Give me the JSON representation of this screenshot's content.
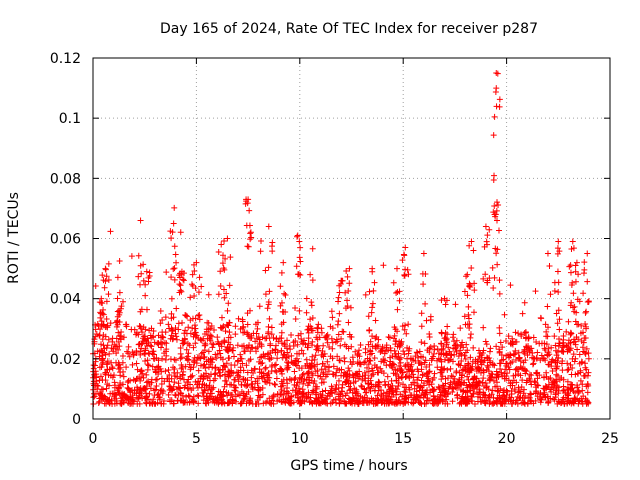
{
  "chart_data": {
    "type": "scatter",
    "title": "Day 165 of 2024, Rate Of TEC Index for receiver p287",
    "xlabel": "GPS time / hours",
    "ylabel": "ROTI / TECUs",
    "xlim": [
      0,
      25
    ],
    "ylim": [
      0,
      0.12
    ],
    "xticks": [
      0,
      5,
      10,
      15,
      20,
      25
    ],
    "xtick_labels": [
      "0",
      "5",
      "10",
      "15",
      "20",
      "25"
    ],
    "yticks": [
      0,
      0.02,
      0.04,
      0.06,
      0.08,
      0.1,
      0.12
    ],
    "ytick_labels": [
      "0",
      "0.02",
      "0.04",
      "0.06",
      "0.08",
      "0.1",
      "0.12"
    ],
    "grid": true,
    "marker": "+",
    "color": "#ff0000",
    "x_range_hours": [
      0,
      24
    ],
    "typical_band": [
      0.005,
      0.025
    ],
    "peaks": [
      {
        "x": 0.4,
        "y": 0.04
      },
      {
        "x": 0.6,
        "y": 0.05
      },
      {
        "x": 1.3,
        "y": 0.042
      },
      {
        "x": 2.3,
        "y": 0.066
      },
      {
        "x": 2.6,
        "y": 0.049
      },
      {
        "x": 3.9,
        "y": 0.065
      },
      {
        "x": 4.3,
        "y": 0.049
      },
      {
        "x": 5.0,
        "y": 0.052
      },
      {
        "x": 6.2,
        "y": 0.058
      },
      {
        "x": 6.5,
        "y": 0.06
      },
      {
        "x": 7.5,
        "y": 0.073
      },
      {
        "x": 8.5,
        "y": 0.064
      },
      {
        "x": 9.2,
        "y": 0.052
      },
      {
        "x": 9.9,
        "y": 0.061
      },
      {
        "x": 10.5,
        "y": 0.048
      },
      {
        "x": 12.0,
        "y": 0.046
      },
      {
        "x": 12.4,
        "y": 0.05
      },
      {
        "x": 13.5,
        "y": 0.05
      },
      {
        "x": 14.7,
        "y": 0.05
      },
      {
        "x": 15.1,
        "y": 0.057
      },
      {
        "x": 16.0,
        "y": 0.055
      },
      {
        "x": 17.0,
        "y": 0.04
      },
      {
        "x": 18.1,
        "y": 0.048
      },
      {
        "x": 18.3,
        "y": 0.059
      },
      {
        "x": 19.0,
        "y": 0.064
      },
      {
        "x": 19.5,
        "y": 0.115
      },
      {
        "x": 19.5,
        "y": 0.11
      },
      {
        "x": 22.0,
        "y": 0.055
      },
      {
        "x": 22.5,
        "y": 0.059
      },
      {
        "x": 23.2,
        "y": 0.059
      },
      {
        "x": 23.4,
        "y": 0.052
      },
      {
        "x": 23.9,
        "y": 0.055
      }
    ]
  }
}
